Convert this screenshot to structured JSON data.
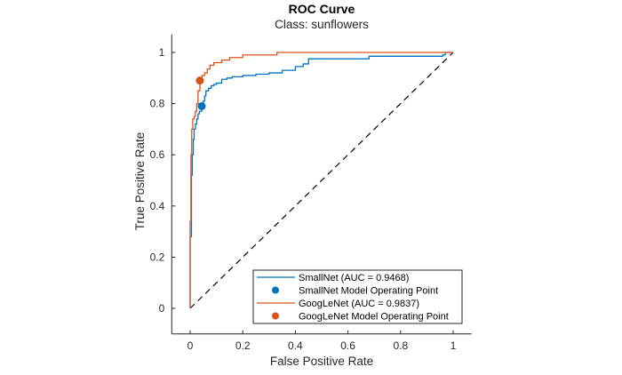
{
  "chart_data": {
    "type": "line",
    "title": "ROC Curve",
    "subtitle": "Class: sunflowers",
    "xlabel": "False Positive Rate",
    "ylabel": "True Positive Rate",
    "xlim": [
      -0.07,
      1.07
    ],
    "ylim": [
      -0.1,
      1.07
    ],
    "xticks": [
      0,
      0.2,
      0.4,
      0.6,
      0.8,
      1
    ],
    "xtick_labels": [
      "0",
      "0.2",
      "0.4",
      "0.6",
      "0.8",
      "1"
    ],
    "yticks": [
      0,
      0.2,
      0.4,
      0.6,
      0.8,
      1
    ],
    "ytick_labels": [
      "0",
      "0.2",
      "0.4",
      "0.6",
      "0.8",
      "1"
    ],
    "grid": false,
    "legend_position": "bottom-right",
    "series": [
      {
        "name": "SmallNet (AUC = 0.9468)",
        "color": "#0072BD",
        "x": [
          0,
          0.0,
          0.005,
          0.008,
          0.012,
          0.015,
          0.02,
          0.025,
          0.03,
          0.035,
          0.044,
          0.05,
          0.055,
          0.06,
          0.07,
          0.08,
          0.09,
          0.1,
          0.12,
          0.14,
          0.16,
          0.2,
          0.25,
          0.3,
          0.35,
          0.4,
          0.43,
          0.45,
          0.67,
          0.68,
          0.96,
          0.97,
          1.0
        ],
        "y": [
          0,
          0.28,
          0.52,
          0.6,
          0.66,
          0.7,
          0.72,
          0.74,
          0.76,
          0.77,
          0.79,
          0.81,
          0.83,
          0.85,
          0.86,
          0.87,
          0.875,
          0.88,
          0.895,
          0.9,
          0.905,
          0.91,
          0.915,
          0.92,
          0.93,
          0.945,
          0.955,
          0.975,
          0.975,
          0.985,
          0.99,
          1.0,
          1.0
        ]
      },
      {
        "name": "GoogLeNet (AUC = 0.9837)",
        "color": "#D95319",
        "x": [
          0,
          0.0,
          0.003,
          0.006,
          0.01,
          0.015,
          0.02,
          0.025,
          0.03,
          0.037,
          0.045,
          0.055,
          0.065,
          0.075,
          0.09,
          0.1,
          0.12,
          0.15,
          0.18,
          0.2,
          0.3,
          0.33,
          1.0
        ],
        "y": [
          0,
          0.34,
          0.6,
          0.7,
          0.74,
          0.75,
          0.77,
          0.8,
          0.85,
          0.89,
          0.91,
          0.92,
          0.935,
          0.95,
          0.96,
          0.96,
          0.97,
          0.98,
          0.98,
          0.99,
          0.99,
          1.0,
          1.0
        ]
      }
    ],
    "operating_points": [
      {
        "name": "SmallNet Model Operating Point",
        "color": "#0072BD",
        "x": 0.044,
        "y": 0.79
      },
      {
        "name": "GoogLeNet Model Operating Point",
        "color": "#D95319",
        "x": 0.037,
        "y": 0.89
      }
    ],
    "reference_line": {
      "x": [
        0,
        1
      ],
      "y": [
        0,
        1
      ],
      "style": "dashed",
      "color": "#000000"
    },
    "legend": [
      {
        "label": "SmallNet (AUC = 0.9468)",
        "kind": "line",
        "color": "#0072BD"
      },
      {
        "label": "SmallNet Model Operating Point",
        "kind": "marker",
        "color": "#0072BD"
      },
      {
        "label": "GoogLeNet (AUC = 0.9837)",
        "kind": "line",
        "color": "#D95319"
      },
      {
        "label": "GoogLeNet Model Operating Point",
        "kind": "marker",
        "color": "#D95319"
      }
    ]
  }
}
